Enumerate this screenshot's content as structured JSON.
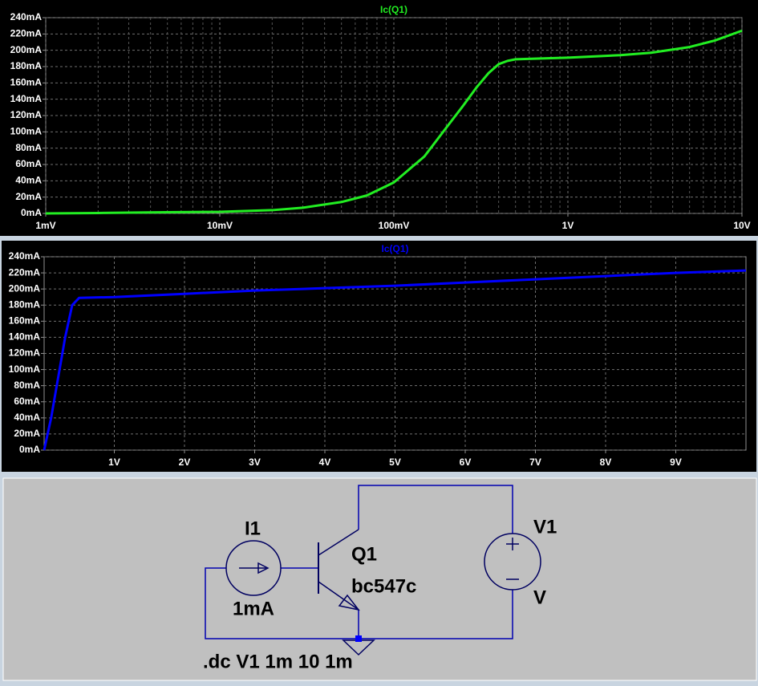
{
  "chart_data": [
    {
      "type": "line",
      "xscale": "log",
      "grid": true,
      "x": [
        0.001,
        0.002,
        0.003,
        0.005,
        0.01,
        0.02,
        0.03,
        0.05,
        0.07,
        0.1,
        0.15,
        0.2,
        0.25,
        0.3,
        0.35,
        0.4,
        0.45,
        0.5,
        0.7,
        1,
        2,
        3,
        5,
        7,
        10
      ],
      "series": [
        {
          "name": "Ic(Q1)",
          "color": "#22ee22",
          "values": [
            0,
            0.5,
            1,
            1.5,
            2,
            4,
            7,
            14,
            22,
            38,
            70,
            105,
            132,
            155,
            172,
            183,
            187,
            189,
            190,
            191,
            194,
            197,
            204,
            212,
            224
          ]
        }
      ],
      "xlim": [
        0.001,
        10
      ],
      "xticks": [
        {
          "value": 0.001,
          "label": "1mV"
        },
        {
          "value": 0.01,
          "label": "10mV"
        },
        {
          "value": 0.1,
          "label": "100mV"
        },
        {
          "value": 1,
          "label": "1V"
        },
        {
          "value": 10,
          "label": "10V"
        }
      ],
      "x_minor_ticks": [
        0.002,
        0.003,
        0.004,
        0.005,
        0.006,
        0.007,
        0.008,
        0.009,
        0.02,
        0.03,
        0.04,
        0.05,
        0.06,
        0.07,
        0.08,
        0.09,
        0.2,
        0.3,
        0.4,
        0.5,
        0.6,
        0.7,
        0.8,
        0.9,
        2,
        3,
        4,
        5,
        6,
        7,
        8,
        9
      ],
      "ylim": [
        0,
        240
      ],
      "yticks": [
        {
          "value": 0,
          "label": "0mA"
        },
        {
          "value": 20,
          "label": "20mA"
        },
        {
          "value": 40,
          "label": "40mA"
        },
        {
          "value": 60,
          "label": "60mA"
        },
        {
          "value": 80,
          "label": "80mA"
        },
        {
          "value": 100,
          "label": "100mA"
        },
        {
          "value": 120,
          "label": "120mA"
        },
        {
          "value": 140,
          "label": "140mA"
        },
        {
          "value": 160,
          "label": "160mA"
        },
        {
          "value": 180,
          "label": "180mA"
        },
        {
          "value": 200,
          "label": "200mA"
        },
        {
          "value": 220,
          "label": "220mA"
        },
        {
          "value": 240,
          "label": "240mA"
        }
      ]
    },
    {
      "type": "line",
      "xscale": "linear",
      "grid": true,
      "x": [
        0,
        0.1,
        0.2,
        0.3,
        0.4,
        0.5,
        1,
        2,
        3,
        4,
        5,
        6,
        7,
        8,
        9,
        10
      ],
      "series": [
        {
          "name": "Ic(Q1)",
          "color": "#0000ff",
          "values": [
            0,
            40,
            90,
            140,
            180,
            189,
            190,
            194,
            198,
            201,
            204,
            208,
            212,
            216,
            220,
            223
          ]
        }
      ],
      "xlim": [
        0,
        10
      ],
      "xticks": [
        {
          "value": 1,
          "label": "1V"
        },
        {
          "value": 2,
          "label": "2V"
        },
        {
          "value": 3,
          "label": "3V"
        },
        {
          "value": 4,
          "label": "4V"
        },
        {
          "value": 5,
          "label": "5V"
        },
        {
          "value": 6,
          "label": "6V"
        },
        {
          "value": 7,
          "label": "7V"
        },
        {
          "value": 8,
          "label": "8V"
        },
        {
          "value": 9,
          "label": "9V"
        }
      ],
      "ylim": [
        0,
        240
      ],
      "yticks": [
        {
          "value": 0,
          "label": "0mA"
        },
        {
          "value": 20,
          "label": "20mA"
        },
        {
          "value": 40,
          "label": "40mA"
        },
        {
          "value": 60,
          "label": "60mA"
        },
        {
          "value": 80,
          "label": "80mA"
        },
        {
          "value": 100,
          "label": "100mA"
        },
        {
          "value": 120,
          "label": "120mA"
        },
        {
          "value": 140,
          "label": "140mA"
        },
        {
          "value": 160,
          "label": "160mA"
        },
        {
          "value": 180,
          "label": "180mA"
        },
        {
          "value": 200,
          "label": "200mA"
        },
        {
          "value": 220,
          "label": "220mA"
        },
        {
          "value": 240,
          "label": "240mA"
        }
      ]
    }
  ],
  "schematic": {
    "i1": {
      "name": "I1",
      "value": "1mA"
    },
    "q1": {
      "name": "Q1",
      "model": "bc547c"
    },
    "v1": {
      "name": "V1",
      "value": "V"
    },
    "directive": ".dc V1 1m 10 1m"
  }
}
